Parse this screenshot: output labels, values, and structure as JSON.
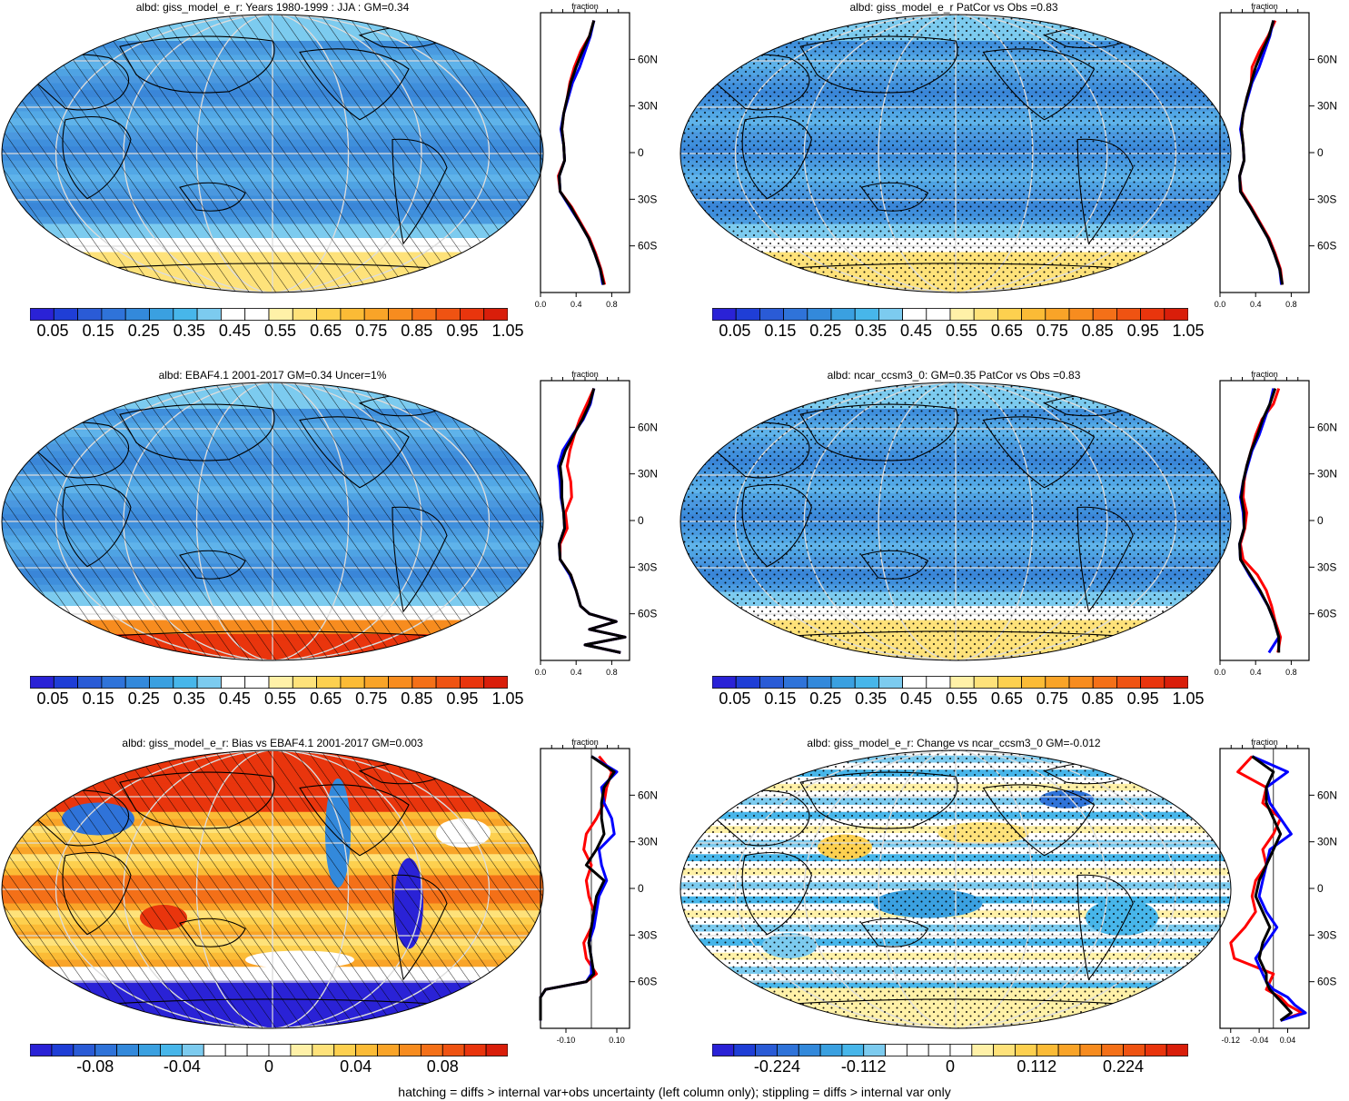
{
  "footer": "hatching = diffs > internal var+obs uncertainty (left column only); stippling = diffs > internal var only",
  "profile_title": "fraction",
  "lat_ticks": [
    "60N",
    "30N",
    "0",
    "30S",
    "60S"
  ],
  "colors": {
    "albedo_scale": [
      "#2a22d6",
      "#1f3ed6",
      "#2a5bd6",
      "#2f73d9",
      "#3389db",
      "#3aa0e0",
      "#47b6ea",
      "#7ccbef",
      "#ffffff",
      "#ffffff",
      "#fff1a8",
      "#fee27a",
      "#fdd04f",
      "#fbbb36",
      "#f9a428",
      "#f78c1f",
      "#f47018",
      "#ef5312",
      "#e9350d",
      "#d91e0a"
    ],
    "diff_scale": [
      "#2a22d6",
      "#1f3ed6",
      "#2a5bd6",
      "#2f73d9",
      "#3389db",
      "#3aa0e0",
      "#47b6ea",
      "#7ccbef",
      "#ffffff",
      "#ffffff",
      "#ffffff",
      "#ffffff",
      "#fff1a8",
      "#fee27a",
      "#fdd04f",
      "#fbbb36",
      "#f9a428",
      "#f78c1f",
      "#f47018",
      "#ef5312",
      "#e9350d",
      "#d91e0a"
    ],
    "model_line": "#ff0000",
    "obs_line": "#0000ff",
    "ref_line": "#000000"
  },
  "chart_data": [
    {
      "type": "heatmap",
      "title": "albd: giss_model_e_r: Years 1980-1999 : JJA : GM=0.34",
      "overlay": "hatching",
      "colorbar_labels": [
        "0.05",
        "0.15",
        "0.25",
        "0.35",
        "0.45",
        "0.55",
        "0.65",
        "0.75",
        "0.85",
        "0.95",
        "1.05"
      ],
      "profile": {
        "xlim": [
          0,
          1.0
        ],
        "x_ticks": [
          "0.0",
          "0.4",
          "0.8"
        ],
        "ylim": [
          -90,
          90
        ],
        "lat": [
          -85,
          -75,
          -65,
          -55,
          -45,
          -35,
          -25,
          -15,
          -5,
          5,
          15,
          25,
          35,
          45,
          55,
          65,
          75,
          85
        ],
        "model": [
          0.72,
          0.68,
          0.62,
          0.55,
          0.45,
          0.35,
          0.22,
          0.2,
          0.27,
          0.26,
          0.24,
          0.26,
          0.3,
          0.33,
          0.38,
          0.45,
          0.55,
          0.6
        ],
        "obs": [
          0.7,
          0.67,
          0.61,
          0.54,
          0.44,
          0.33,
          0.22,
          0.21,
          0.27,
          0.26,
          0.23,
          0.26,
          0.31,
          0.36,
          0.44,
          0.5,
          0.56,
          0.6
        ],
        "ref": [
          0.71,
          0.67,
          0.61,
          0.54,
          0.44,
          0.34,
          0.22,
          0.21,
          0.27,
          0.26,
          0.24,
          0.26,
          0.3,
          0.34,
          0.4,
          0.47,
          0.55,
          0.6
        ]
      }
    },
    {
      "type": "heatmap",
      "title": "albd: giss_model_e_r PatCor vs Obs =0.83",
      "overlay": "stippling",
      "colorbar_labels": [
        "0.05",
        "0.15",
        "0.25",
        "0.35",
        "0.45",
        "0.55",
        "0.65",
        "0.75",
        "0.85",
        "0.95",
        "1.05"
      ],
      "profile": {
        "xlim": [
          0,
          1.0
        ],
        "x_ticks": [
          "0.0",
          "0.4",
          "0.8"
        ],
        "ylim": [
          -90,
          90
        ],
        "lat": [
          -85,
          -75,
          -65,
          -55,
          -45,
          -35,
          -25,
          -15,
          -5,
          5,
          15,
          25,
          35,
          45,
          55,
          65,
          75,
          85
        ],
        "model": [
          0.7,
          0.68,
          0.62,
          0.55,
          0.45,
          0.35,
          0.24,
          0.22,
          0.27,
          0.26,
          0.24,
          0.26,
          0.3,
          0.35,
          0.36,
          0.44,
          0.54,
          0.62
        ],
        "obs": [
          0.69,
          0.67,
          0.61,
          0.54,
          0.44,
          0.34,
          0.23,
          0.22,
          0.27,
          0.26,
          0.23,
          0.26,
          0.31,
          0.36,
          0.44,
          0.5,
          0.56,
          0.6
        ],
        "ref": [
          0.7,
          0.67,
          0.61,
          0.54,
          0.44,
          0.34,
          0.23,
          0.22,
          0.27,
          0.26,
          0.24,
          0.26,
          0.3,
          0.35,
          0.4,
          0.47,
          0.55,
          0.6
        ]
      }
    },
    {
      "type": "heatmap",
      "title": "albd: EBAF4.1 2001-2017 GM=0.34 Uncer=1%",
      "overlay": "hatching",
      "colorbar_labels": [
        "0.05",
        "0.15",
        "0.25",
        "0.35",
        "0.45",
        "0.55",
        "0.65",
        "0.75",
        "0.85",
        "0.95",
        "1.05"
      ],
      "profile": {
        "xlim": [
          0,
          1.0
        ],
        "x_ticks": [
          "0.0",
          "0.4",
          "0.8"
        ],
        "ylim": [
          -90,
          90
        ],
        "lat": [
          -85,
          -80,
          -75,
          -70,
          -65,
          -60,
          -55,
          -45,
          -35,
          -25,
          -15,
          -5,
          5,
          15,
          25,
          35,
          45,
          55,
          65,
          75,
          85
        ],
        "model": [
          0.9,
          0.5,
          0.95,
          0.55,
          0.85,
          0.55,
          0.45,
          0.4,
          0.34,
          0.22,
          0.22,
          0.3,
          0.28,
          0.35,
          0.34,
          0.3,
          0.33,
          0.38,
          0.44,
          0.52,
          0.6
        ],
        "obs": [
          0.9,
          0.5,
          0.95,
          0.55,
          0.85,
          0.55,
          0.45,
          0.4,
          0.33,
          0.22,
          0.21,
          0.27,
          0.26,
          0.23,
          0.22,
          0.2,
          0.25,
          0.36,
          0.48,
          0.56,
          0.6
        ],
        "ref": [
          0.9,
          0.5,
          0.95,
          0.55,
          0.85,
          0.55,
          0.45,
          0.4,
          0.34,
          0.22,
          0.21,
          0.27,
          0.26,
          0.24,
          0.24,
          0.22,
          0.28,
          0.37,
          0.47,
          0.55,
          0.6
        ]
      }
    },
    {
      "type": "heatmap",
      "title": "albd: ncar_ccsm3_0: GM=0.35 PatCor vs Obs =0.83",
      "overlay": "stippling",
      "colorbar_labels": [
        "0.05",
        "0.15",
        "0.25",
        "0.35",
        "0.45",
        "0.55",
        "0.65",
        "0.75",
        "0.85",
        "0.95",
        "1.05"
      ],
      "profile": {
        "xlim": [
          0,
          1.0
        ],
        "x_ticks": [
          "0.0",
          "0.4",
          "0.8"
        ],
        "ylim": [
          -90,
          90
        ],
        "lat": [
          -85,
          -75,
          -65,
          -55,
          -45,
          -35,
          -25,
          -15,
          -5,
          5,
          15,
          25,
          35,
          45,
          55,
          65,
          75,
          85
        ],
        "model": [
          0.65,
          0.68,
          0.62,
          0.58,
          0.52,
          0.42,
          0.26,
          0.23,
          0.28,
          0.3,
          0.26,
          0.27,
          0.3,
          0.35,
          0.4,
          0.47,
          0.6,
          0.66
        ],
        "obs": [
          0.55,
          0.66,
          0.61,
          0.54,
          0.44,
          0.33,
          0.23,
          0.22,
          0.27,
          0.26,
          0.23,
          0.26,
          0.31,
          0.36,
          0.44,
          0.5,
          0.56,
          0.6
        ],
        "ref": [
          0.66,
          0.66,
          0.61,
          0.54,
          0.45,
          0.34,
          0.23,
          0.22,
          0.27,
          0.27,
          0.24,
          0.26,
          0.3,
          0.35,
          0.42,
          0.48,
          0.56,
          0.62
        ]
      }
    },
    {
      "type": "heatmap",
      "title": "albd: giss_model_e_r: Bias vs EBAF4.1 2001-2017 GM=0.003",
      "overlay": "hatching",
      "colorbar_labels": [
        "-0.08",
        "-0.04",
        "0",
        "0.04",
        "0.08"
      ],
      "profile": {
        "xlim": [
          -0.2,
          0.15
        ],
        "x_ticks": [
          "-0.10",
          "0.10"
        ],
        "ylim": [
          -90,
          90
        ],
        "lat": [
          -85,
          -80,
          -75,
          -70,
          -65,
          -60,
          -55,
          -45,
          -35,
          -25,
          -15,
          -5,
          5,
          15,
          25,
          35,
          45,
          55,
          65,
          75,
          85
        ],
        "model": [
          -0.2,
          -0.2,
          -0.2,
          -0.2,
          -0.18,
          -0.02,
          0.02,
          -0.02,
          -0.03,
          0.0,
          0.01,
          -0.01,
          -0.02,
          0.0,
          -0.03,
          -0.02,
          0.02,
          0.05,
          0.06,
          0.08,
          0.03
        ],
        "obs": [
          -0.2,
          -0.2,
          -0.2,
          -0.2,
          -0.18,
          -0.02,
          0.0,
          0.0,
          -0.01,
          0.01,
          0.02,
          0.03,
          0.06,
          0.04,
          0.03,
          0.09,
          0.08,
          0.05,
          0.04,
          0.1,
          0.0
        ],
        "ref": [
          -0.2,
          -0.2,
          -0.2,
          -0.2,
          -0.18,
          -0.02,
          0.01,
          0.0,
          -0.01,
          0.0,
          0.01,
          0.02,
          0.05,
          -0.02,
          0.02,
          0.05,
          0.04,
          0.04,
          0.05,
          0.09,
          0.0
        ]
      }
    },
    {
      "type": "heatmap",
      "title": "albd: giss_model_e_r: Change vs ncar_ccsm3_0 GM=-0.012",
      "overlay": "stippling",
      "colorbar_labels": [
        "-0.224",
        "-0.112",
        "0",
        "0.112",
        "0.224"
      ],
      "profile": {
        "xlim": [
          -0.15,
          0.1
        ],
        "x_ticks": [
          "-0.12",
          "-0.04",
          "0.04"
        ],
        "ylim": [
          -90,
          90
        ],
        "lat": [
          -85,
          -80,
          -75,
          -70,
          -65,
          -60,
          -55,
          -45,
          -35,
          -25,
          -15,
          -5,
          5,
          15,
          25,
          35,
          45,
          55,
          65,
          75,
          85
        ],
        "model": [
          0.02,
          0.08,
          0.04,
          0.02,
          -0.02,
          -0.01,
          0.0,
          -0.11,
          -0.12,
          -0.08,
          -0.05,
          -0.06,
          -0.05,
          -0.02,
          -0.03,
          0.0,
          0.02,
          -0.03,
          -0.02,
          -0.1,
          -0.06
        ],
        "obs": [
          0.02,
          0.09,
          0.06,
          0.04,
          0.0,
          -0.02,
          -0.03,
          -0.05,
          -0.02,
          0.01,
          -0.02,
          -0.04,
          -0.03,
          -0.02,
          -0.01,
          0.05,
          0.02,
          -0.01,
          -0.02,
          0.04,
          -0.06
        ],
        "ref": [
          0.02,
          0.05,
          0.03,
          0.01,
          -0.01,
          -0.02,
          -0.02,
          -0.04,
          -0.03,
          -0.01,
          -0.03,
          -0.05,
          -0.04,
          -0.02,
          0.0,
          0.02,
          0.0,
          -0.02,
          -0.02,
          0.0,
          -0.06
        ]
      }
    }
  ]
}
